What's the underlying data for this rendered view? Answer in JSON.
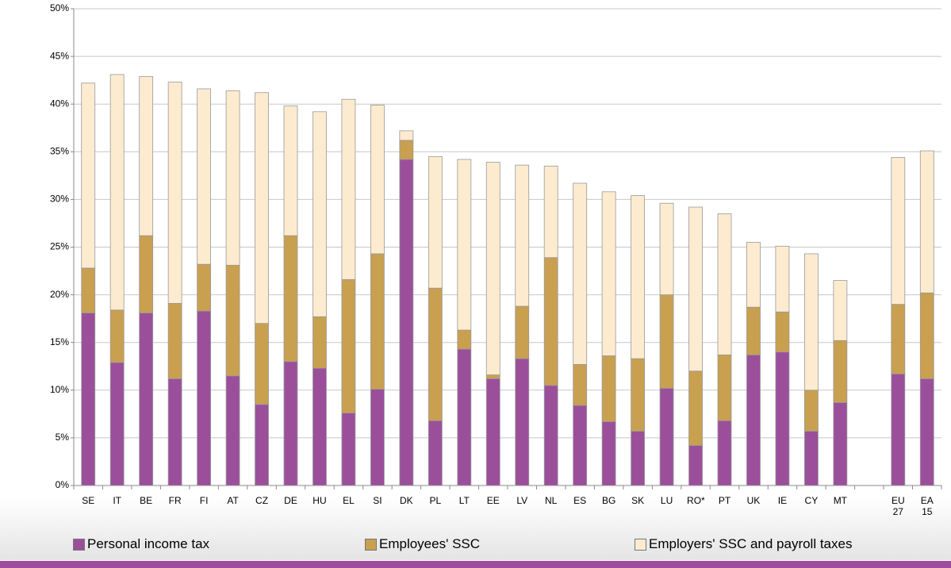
{
  "chart_data": {
    "type": "stacked_bar",
    "categories": [
      "SE",
      "IT",
      "BE",
      "FR",
      "FI",
      "AT",
      "CZ",
      "DE",
      "HU",
      "EL",
      "SI",
      "DK",
      "PL",
      "LT",
      "EE",
      "LV",
      "NL",
      "ES",
      "BG",
      "SK",
      "LU",
      "RO*",
      "PT",
      "UK",
      "IE",
      "CY",
      "MT",
      null,
      "EU 27",
      "EA 15"
    ],
    "series": [
      {
        "name": "Personal income tax",
        "color": "#9b4f9b",
        "values": [
          18.1,
          12.9,
          18.1,
          11.2,
          18.3,
          11.5,
          8.5,
          13.0,
          12.3,
          7.6,
          10.1,
          34.2,
          6.8,
          14.3,
          11.2,
          13.3,
          10.5,
          8.4,
          6.7,
          5.7,
          10.2,
          4.2,
          6.8,
          13.7,
          14.0,
          5.7,
          8.7,
          null,
          11.7,
          11.2
        ]
      },
      {
        "name": "Employees' SSC",
        "color": "#c8a050",
        "values": [
          4.7,
          5.5,
          8.1,
          7.9,
          4.9,
          11.6,
          8.5,
          13.2,
          5.4,
          14.0,
          14.2,
          2.0,
          13.9,
          2.0,
          0.4,
          5.5,
          13.4,
          4.3,
          6.9,
          7.6,
          9.8,
          7.8,
          6.9,
          5.0,
          4.2,
          4.3,
          6.5,
          null,
          7.3,
          9.0
        ]
      },
      {
        "name": "Employers' SSC and payroll taxes",
        "color": "#fdebd0",
        "values": [
          19.4,
          24.7,
          16.7,
          23.2,
          18.4,
          18.3,
          24.2,
          13.6,
          21.5,
          18.9,
          15.6,
          1.0,
          13.8,
          17.9,
          22.3,
          14.8,
          9.6,
          19.0,
          17.2,
          17.1,
          9.6,
          17.2,
          14.8,
          6.8,
          6.9,
          14.3,
          6.3,
          null,
          15.4,
          14.9
        ]
      }
    ],
    "ylim": [
      0,
      50
    ],
    "yticks": [
      {
        "value": 0,
        "label": "0%"
      },
      {
        "value": 5,
        "label": "5%"
      },
      {
        "value": 10,
        "label": "10%"
      },
      {
        "value": 15,
        "label": "15%"
      },
      {
        "value": 20,
        "label": "20%"
      },
      {
        "value": 25,
        "label": "25%"
      },
      {
        "value": 30,
        "label": "30%"
      },
      {
        "value": 35,
        "label": "35%"
      },
      {
        "value": 40,
        "label": "40%"
      },
      {
        "value": 45,
        "label": "45%"
      },
      {
        "value": 50,
        "label": "50%"
      }
    ],
    "grid": true
  }
}
